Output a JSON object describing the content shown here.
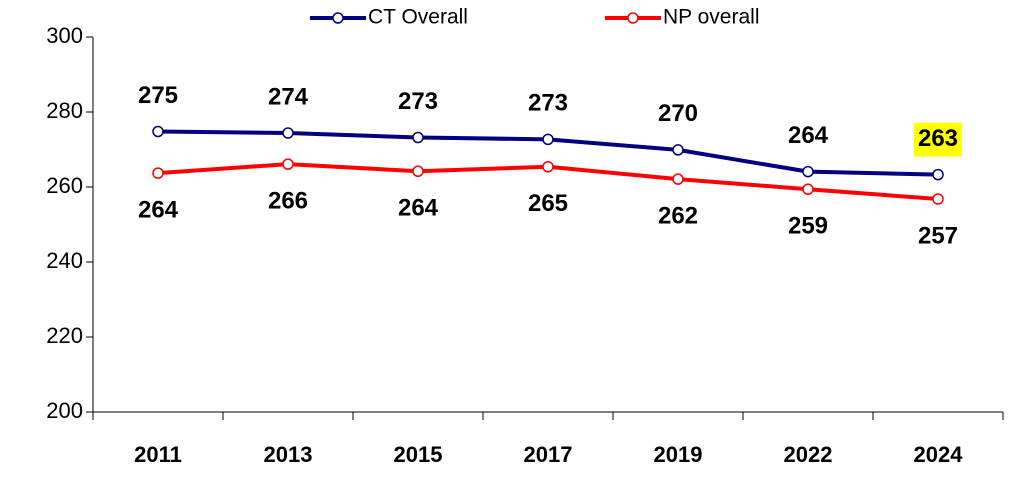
{
  "chart_data": {
    "type": "line",
    "categories": [
      "2011",
      "2013",
      "2015",
      "2017",
      "2019",
      "2022",
      "2024"
    ],
    "series": [
      {
        "name": "CT Overall",
        "color": "#000080",
        "values": [
          274.8,
          274.4,
          273.2,
          272.7,
          269.9,
          264.1,
          263.3
        ],
        "value_labels": [
          "275",
          "274",
          "273",
          "273",
          "270",
          "264",
          "263"
        ],
        "label_position": "above",
        "label_highlight": {
          "index": 6,
          "color": "#ffff00"
        }
      },
      {
        "name": "NP overall",
        "color": "#ff0000",
        "values": [
          263.7,
          266.1,
          264.2,
          265.4,
          262.1,
          259.4,
          256.8
        ],
        "value_labels": [
          "264",
          "266",
          "264",
          "265",
          "262",
          "259",
          "257"
        ],
        "label_position": "below"
      }
    ],
    "ylim": [
      200,
      300
    ],
    "yticks": [
      200,
      220,
      240,
      260,
      280,
      300
    ],
    "legend": "top"
  }
}
